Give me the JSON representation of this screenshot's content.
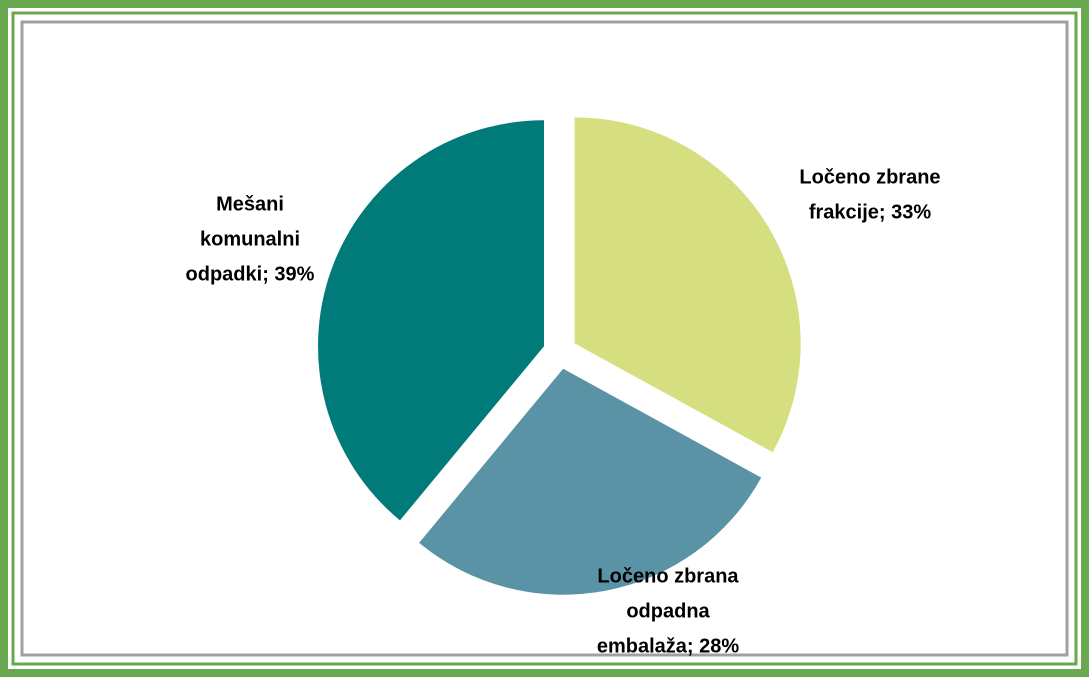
{
  "chart_data": {
    "type": "pie",
    "categories": [
      "Ločeno zbrane frakcije",
      "Ločeno zbrana odpadna embalaža",
      "Mešani komunalni odpadki"
    ],
    "values": [
      33,
      28,
      39
    ],
    "value_labels": [
      [
        "Ločeno zbrane",
        "frakcije; 33%"
      ],
      [
        "Ločeno zbrana",
        "odpadna",
        "embalaža; 28%"
      ],
      [
        "Mešani",
        "komunalni",
        "odpadki; 39%"
      ]
    ],
    "colors": [
      "#d5df80",
      "#5b93a6",
      "#007b7a"
    ]
  }
}
